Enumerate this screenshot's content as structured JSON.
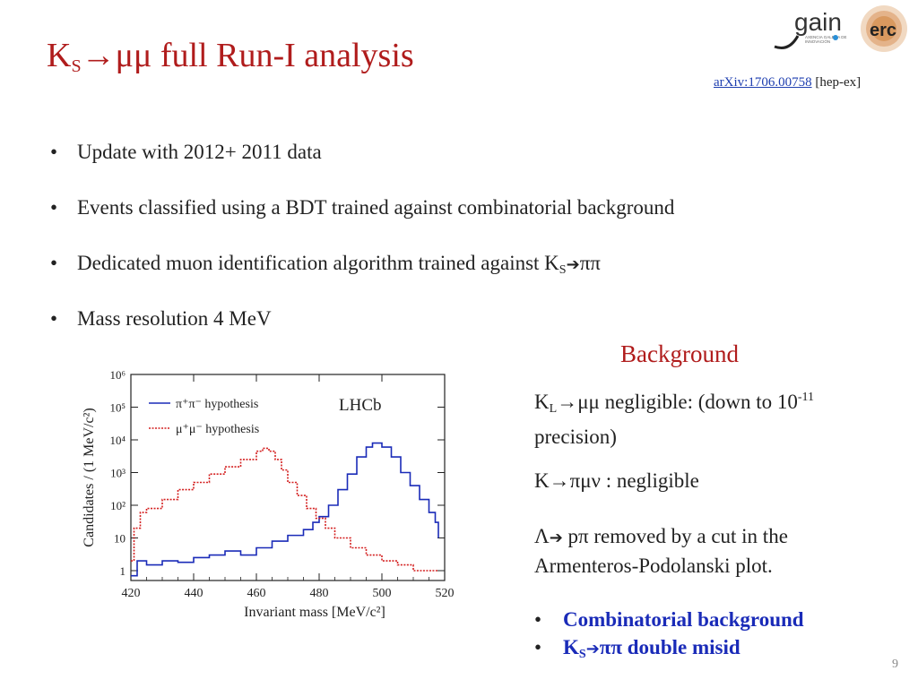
{
  "slide": {
    "title_main": "K",
    "title_sub": "S",
    "title_rest": "→μμ full Run-I analysis",
    "page_number": "9"
  },
  "logos": {
    "gain_text": "gain",
    "gain_tagline_1": "AXENCIA GALEGA DE",
    "gain_tagline_2": "INNOVACIÓN",
    "erc_text": "erc"
  },
  "reference": {
    "link_text": "arXiv:1706.00758",
    "category": "[hep-ex]"
  },
  "bullets": [
    {
      "text": "Update with 2012+ 2011 data"
    },
    {
      "text": "Events classified using a BDT trained against combinatorial background"
    },
    {
      "text_before": "Dedicated muon identification algorithm trained against K",
      "sub": "S",
      "text_after": "ππ"
    },
    {
      "text": "Mass resolution 4 MeV"
    }
  ],
  "background": {
    "heading": "Background",
    "kl": {
      "k": "K",
      "sub": "L",
      "rest": "→μμ negligible: (down to 10",
      "sup": "-11",
      "line2": "precision)"
    },
    "kpimunu": "K→πμν : negligible",
    "lambda": {
      "line1": "Λ",
      "line1_rest": " pπ removed by a cut in the",
      "line2": "Armenteros-Podolanski plot."
    },
    "list": [
      {
        "text": "Combinatorial background"
      },
      {
        "text_before": "K",
        "sub": "S",
        "text_after": "ππ double misid"
      }
    ]
  },
  "chart_data": {
    "type": "line",
    "title": "",
    "annotation": "LHCb",
    "xlabel": "Invariant mass [MeV/c²]",
    "ylabel": "Candidates / (1 MeV/c²)",
    "xlim": [
      420,
      520
    ],
    "ylim": [
      0.5,
      1000000
    ],
    "log_y": true,
    "grid": false,
    "legend_position": "top-left",
    "x_ticks": [
      "420",
      "440",
      "460",
      "480",
      "500",
      "520"
    ],
    "y_ticks": [
      "1",
      "10",
      "10²",
      "10³",
      "10⁴",
      "10⁵",
      "10⁶"
    ],
    "series": [
      {
        "name": "π⁺π⁻ hypothesis",
        "color": "#1a2bb8",
        "style": "solid",
        "x": [
          420,
          422,
          425,
          430,
          435,
          440,
          445,
          450,
          455,
          460,
          465,
          470,
          475,
          478,
          480,
          483,
          486,
          489,
          492,
          495,
          497,
          498,
          500,
          503,
          506,
          509,
          512,
          515,
          517,
          518
        ],
        "y": [
          0.7,
          2,
          1.5,
          2,
          1.8,
          2.5,
          3,
          4,
          3,
          5,
          8,
          12,
          18,
          30,
          45,
          100,
          300,
          900,
          3000,
          6000,
          8000,
          8000,
          6000,
          3000,
          1000,
          400,
          150,
          60,
          30,
          10
        ]
      },
      {
        "name": "μ⁺μ⁻ hypothesis",
        "color": "#d42020",
        "style": "dotted",
        "x": [
          420,
          421,
          423,
          425,
          430,
          435,
          440,
          445,
          450,
          455,
          460,
          462,
          464,
          466,
          468,
          470,
          473,
          476,
          479,
          482,
          485,
          490,
          495,
          500,
          505,
          510,
          515,
          518
        ],
        "y": [
          2,
          20,
          60,
          80,
          150,
          300,
          500,
          900,
          1500,
          2500,
          4500,
          5500,
          4500,
          2500,
          1200,
          500,
          200,
          80,
          40,
          20,
          10,
          5,
          3,
          2,
          1.5,
          1,
          1,
          1
        ]
      }
    ]
  }
}
